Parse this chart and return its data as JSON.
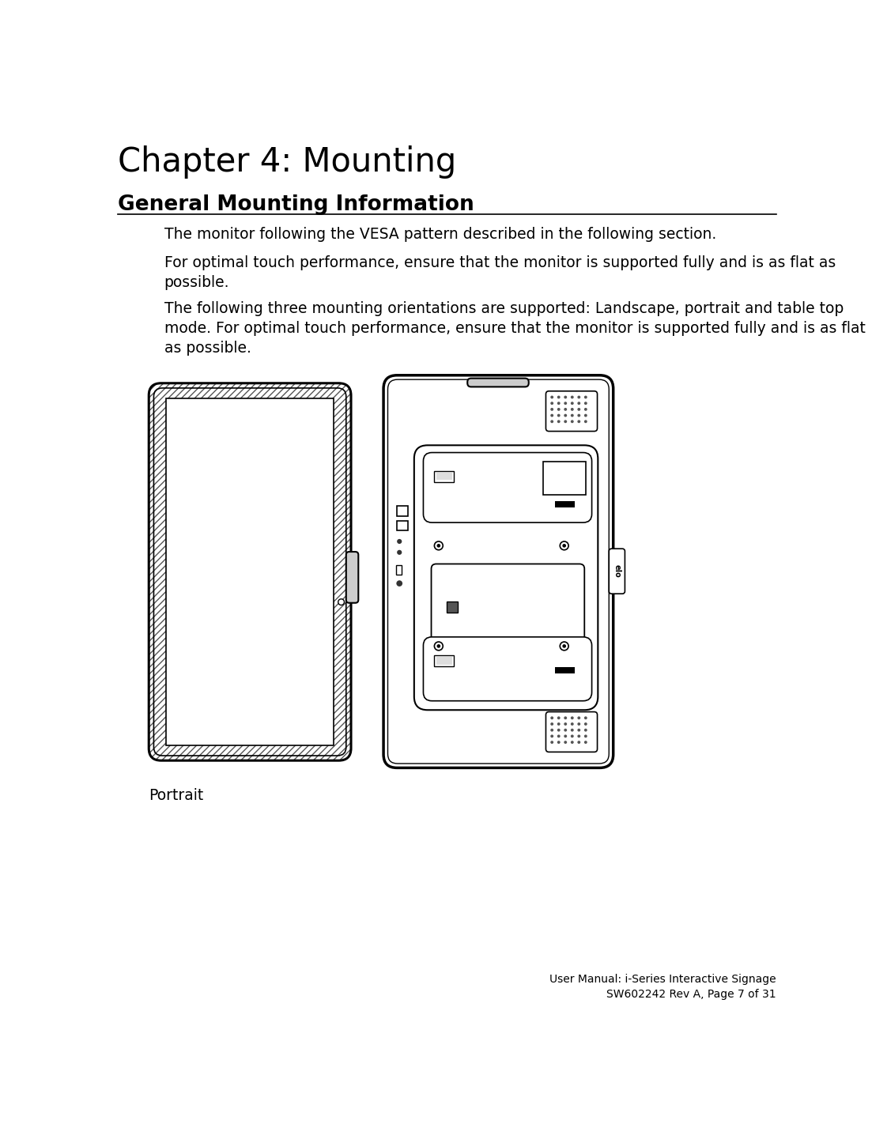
{
  "title": "Chapter 4: Mounting",
  "section": "General Mounting Information",
  "para1": "The monitor following the VESA pattern described in the following section.",
  "para2": "For optimal touch performance, ensure that the monitor is supported fully and is as flat as\npossible.",
  "para3": "The following three mounting orientations are supported: Landscape, portrait and table top\nmode. For optimal touch performance, ensure that the monitor is supported fully and is as flat\nas possible.",
  "caption": "Portrait",
  "footer": "User Manual: i-Series Interactive Signage\nSW602242 Rev A, Page 7 of 31",
  "bg_color": "#ffffff",
  "text_color": "#000000",
  "title_fontsize": 30,
  "section_fontsize": 19,
  "body_fontsize": 13.5,
  "caption_fontsize": 13.5,
  "footer_fontsize": 10
}
